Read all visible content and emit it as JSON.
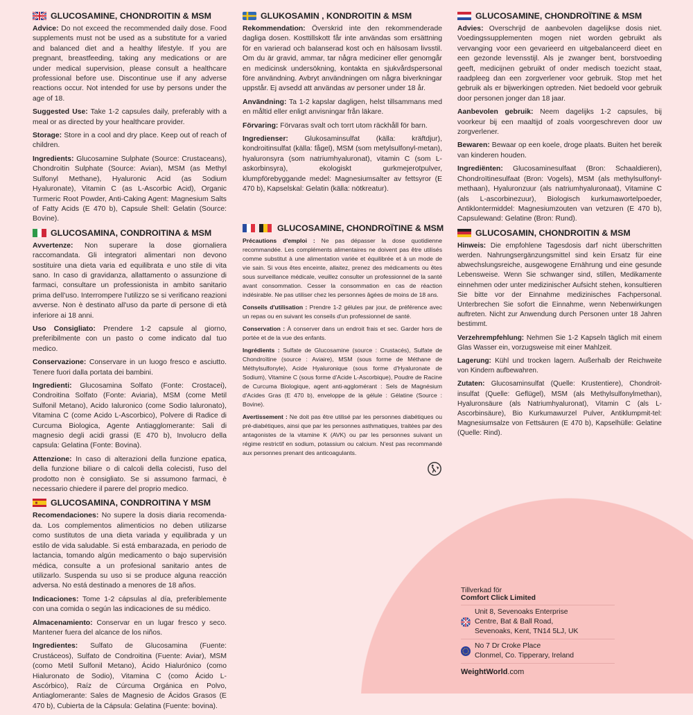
{
  "colors": {
    "background": "#fce6e6",
    "accent_circle": "#f9c3c1",
    "text": "#2a2a2a"
  },
  "sections": [
    {
      "id": "en",
      "flag": "uk-flag-icon",
      "title": "GLUCOSAMINE, CHONDROITIN & MSM",
      "paras": [
        {
          "label": "Advice:",
          "text": " Do not exceed the recommended daily dose. Food supplements must not be used as a substitute for a varied and balanced diet and a healthy lifestyle. If you are pregnant, breastfeeding, taking any medications or are under medical supervision, please consult a healthcare professional before use. Discontinue use if any adverse reactions occur. Not intended for use by persons under the age of 18."
        },
        {
          "label": "Suggested Use:",
          "text": " Take 1-2 capsules daily, preferably with a meal or as directed by your healthcare provider."
        },
        {
          "label": "Storage:",
          "text": " Store in a cool and dry place. Keep out of reach of children."
        },
        {
          "label": "Ingredients:",
          "text": " Glucosamine Sulphate (Source: Crustaceans), Chondroitin Sulphate (Source: Avian), MSM (as Methyl Sulfonyl Methane), Hyaluronic Acid (as Sodium Hyaluronate), Vitamin C (as L-Ascorbic Acid), Organic Turmeric Root Powder, Anti-Caking Agent: Magnesium Salts of Fatty Acids (E 470 b), Capsule Shell: Gelatin (Source: Bovine)."
        }
      ]
    },
    {
      "id": "sv",
      "flag": "sweden-flag-icon",
      "title": "GLUKOSAMIN , KONDROITIN & MSM",
      "paras": [
        {
          "label": "Rekommendation:",
          "text": " Överskrid inte den rekommenderade dagliga dosen. Kosttillskott får inte användas som ersättning för en varierad och balanserad kost och en hälsosam livsstil. Om du är gravid, ammar, tar några mediciner eller genomgår en medicinsk undersökning, kontakta en sjukvårdspersonal före användning. Avbryt användningen om några biverkningar uppstår. Ej avsedd att användas av personer under 18 år."
        },
        {
          "label": "Användning:",
          "text": " Ta 1-2 kapslar dagligen, helst tillsammans med en måltid eller enligt anvisningar från läkare."
        },
        {
          "label": "Förvaring:",
          "text": " Förvaras svalt och torrt utom räckhåll för barn."
        },
        {
          "label": "Ingredienser:",
          "text": " Glukosaminsulfat (källa: kräftdjur), kondroitinsulfat (källa: fågel), MSM (som metylsulfonyl-metan), hyaluronsyra (som natriumhyaluronat), vitamin C (som L-askorbinsyra), ekologiskt gurkmejerotpulver, klumpförebyggande medel: Magnesiumsalter av fettsyror (E 470 b), Kapselskal: Gelatin (källa: nötkreatur)."
        }
      ]
    },
    {
      "id": "nl",
      "flag": "netherlands-flag-icon",
      "title": "GLUCOSAMINE, CHONDROÏTINE & MSM",
      "paras": [
        {
          "label": "Advies:",
          "text": " Overschrijd de aanbevolen dagelijkse dosis niet. Voedingssupplementen mogen niet worden gebruikt als vervanging voor een gevarieerd en uitgebalanceerd dieet en een gezonde levensstijl. Als je zwanger bent, borstvoeding geeft, medicijnen gebruikt of onder medisch toezicht staat, raadpleeg dan een zorgverlener voor gebruik. Stop met het gebruik als er bijwerkingen optreden. Niet bedoeld voor gebruik door personen jonger dan 18 jaar."
        },
        {
          "label": "Aanbevolen gebruik:",
          "text": " Neem dagelijks 1-2 capsules, bij voorkeur bij een maaltijd of zoals voorgeschreven door uw zorgverlener."
        },
        {
          "label": "Bewaren:",
          "text": " Bewaar op een koele, droge plaats. Buiten het bereik van kinderen houden."
        },
        {
          "label": "Ingrediënten:",
          "text": " Glucosaminesulfaat (Bron: Schaaldieren), Chondroïtinesulfaat (Bron: Vogels), MSM (als methylsulfonyl-methaan), Hyaluronzuur (als natriumhyaluronaat), Vitamine C (als L-ascorbinezuur), Biologisch kurkumawortelpoeder, Antiklontermiddel: Magnesiumzouten van vetzuren (E 470 b), Capsulewand: Gelatine (Bron: Rund)."
        }
      ]
    },
    {
      "id": "it",
      "flag": "italy-flag-icon",
      "title": "GLUCOSAMINA, CONDROITINA & MSM",
      "paras": [
        {
          "label": "Avvertenze:",
          "text": " Non superare la dose giornaliera raccomandata. Gli integratori alimentari non devono sostituire una dieta varia ed equilibrata e uno stile di vita sano. In caso di gravidanza, allattamento o assunzione di farmaci, consultare un professionista in ambito sanitario prima dell'uso. Interrompere l'utilizzo se si verificano reazioni avverse. Non è destinato all'uso da parte di persone di età inferiore ai 18 anni."
        },
        {
          "label": "Uso Consigliato:",
          "text": " Prendere 1-2 capsule al giorno, preferibilmente con un pasto o come indicato dal tuo medico."
        },
        {
          "label": "Conservazione:",
          "text": " Conservare in un luogo fresco e asciutto. Tenere fuori dalla portata dei bambini."
        },
        {
          "label": "Ingredienti:",
          "text": " Glucosamina Solfato (Fonte: Crostacei), Condroitina Solfato (Fonte: Aviaria), MSM (come Metil Sulfonil Metano), Acido Ialuronico (come Sodio Ialuronato), Vitamina C (come Acido L-Ascorbico), Polvere di Radice di Curcuma Biologica, Agente Antiagglomerante: Sali di magnesio degli acidi grassi (E 470 b), Involucro della capsula: Gelatina (Fonte: Bovina)."
        },
        {
          "label": "Attenzione:",
          "text": " In caso di alterazioni della funzione epatica, della funzione biliare o di calcoli della colecisti, l'uso del prodotto non è consigliato. Se si assumono farmaci, è necessario chiedere il parere del proprio medico."
        }
      ]
    },
    {
      "id": "fr",
      "flag": "france-belgium-flag-icon",
      "title": "GLUCOSAMINE, CHONDROÏTINE & MSM",
      "paras": [
        {
          "label": "Précautions d'emploi :",
          "text": "  Ne pas dépasser la dose quotidienne recommandée. Les compléments alimentaires ne doivent pas être utilisés comme substitut à une alimentation variée et équilibrée et à un mode de vie sain. Si vous êtes enceinte, allaitez, prenez des médicaments ou êtes sous surveillance médicale, veuillez consulter un professionnel de la santé avant consommation. Cesser la consommation en cas de réaction indésirable. Ne pas utiliser chez les personnes âgées de moins de 18 ans."
        },
        {
          "label": "Conseils d'utilisation :",
          "text": " Prendre 1-2 gélules par jour, de préférence avec un repas ou en suivant les conseils d'un professionnel de santé."
        },
        {
          "label": "Conservation :",
          "text": " À conserver dans un endroit frais et sec. Garder hors de portée et de la vue des enfants."
        },
        {
          "label": "Ingrédients :",
          "text": " Sulfate de Glucosamine (source : Crustacés), Sulfate de Chondroïtine (source : Aviaire), MSM (sous forme de Méthane de Méthylsulfonyle), Acide Hyaluronique (sous forme d'Hyaluronate de Sodium), Vitamine C (sous forme d'Acide L-Ascorbique), Poudre de Racine de Curcuma Biologique, agent anti-agglomérant : Sels de Magnésium d'Acides Gras (E 470 b), enveloppe de la gélule : Gélatine (Source : Bovine)."
        },
        {
          "label": "Avertissement :",
          "text": " Ne doit pas être utilisé par les personnes diabétiques ou pré-diabétiques, ainsi que par les personnes asthmatiques, traitées par des antagonistes de la vitamine K (AVK) ou par les personnes suivant un régime restrictif en sodium, potassium ou calcium. N'est pas recommandé aux personnes prenant des anticoagulants."
        }
      ]
    },
    {
      "id": "de",
      "flag": "germany-flag-icon",
      "title": "GLUCOSAMIN, CHONDROITIN & MSM",
      "paras": [
        {
          "label": "Hinweis:",
          "text": " Die empfohlene Tagesdosis darf nicht überschritten werden. Nahrungsergänzungsmittel sind kein Ersatz für eine abwechslungsreiche, ausgewogene Ernährung und eine gesunde Lebensweise. Wenn Sie schwanger sind, stillen, Medikamente einnehmen oder unter medizinischer Aufsicht stehen, konsultieren Sie bitte vor der Einnahme medizinisches Fachpersonal. Unterbrechen Sie sofort die Einnahme, wenn Nebenwirkungen auftreten. Nicht zur Anwendung durch Personen unter 18 Jahren bestimmt."
        },
        {
          "label": "Verzehrempfehlung:",
          "text": " Nehmen Sie 1-2 Kapseln täglich mit einem Glas Wasser ein, vorzugsweise mit einer Mahlzeit."
        },
        {
          "label": "Lagerung:",
          "text": " Kühl und trocken lagern. Außerhalb der Reichweite von Kindern aufbewahren."
        },
        {
          "label": "Zutaten:",
          "text": " Glucosaminsulfat (Quelle: Krustentiere), Chondroit-insulfat (Quelle: Geflügel), MSM (als Methylsulfonylmethan), Hyaluronsäure (als Natriumhyaluronat), Vitamin C (als L-Ascorbinsäure), Bio Kurkumawurzel Pulver, Antiklumpmit-tel: Magnesiumsalze von Fettsäuren (E 470 b), Kapselhülle: Gelatine (Quelle: Rind)."
        }
      ]
    },
    {
      "id": "es",
      "flag": "spain-flag-icon",
      "title": "GLUCOSAMINA, CONDROITINA Y MSM",
      "paras": [
        {
          "label": "Recomendaciones:",
          "text": " No supere la dosis diaria recomenda-da. Los complementos alimenticios no deben utilizarse como sustitutos de una dieta variada y equilibrada y un estilo de vida saludable. Si está embarazada, en periodo de lactancia, tomando algún medicamento o bajo supervisión médica, consulte a un profesional sanitario antes de utilizarlo. Suspenda su uso si se produce alguna reacción adversa. No está destinado a menores de 18 años."
        },
        {
          "label": "Indicaciones:",
          "text": " Tome 1-2 cápsulas al día, preferiblemente con una comida o según las indicaciones de su médico."
        },
        {
          "label": "Almacenamiento:",
          "text": " Conservar en un lugar fresco y seco. Mantener fuera del alcance de los niños."
        },
        {
          "label": "Ingredientes:",
          "text": " Sulfato de Glucosamina (Fuente: Crustáceos), Sulfato de Condroitina (Fuente: Aviar), MSM (como Metil Sulfonil Metano), Ácido Hialurónico (como Hialuronato de Sodio), Vitamina C (como Ácido L-Ascórbico), Raíz de Cúrcuma Orgánica en Polvo, Antiaglomerante: Sales de Magnesio de Ácidos Grasos (E 470 b), Cubierta de la Cápsula: Gelatina (Fuente: bovina)."
        }
      ]
    }
  ],
  "recycle_icon": "triman-recycling-icon",
  "footer": {
    "made_for": "Tillverkad för",
    "company": "Comfort Click Limited",
    "uk_address": [
      "Unit 8, Sevenoaks Enterprise",
      "Centre, Bat & Ball Road,",
      "Sevenoaks, Kent, TN14 5LJ, UK"
    ],
    "eu_address": [
      "No 7 Dr Croke Place",
      "Clonmel, Co. Tipperary, Ireland"
    ],
    "website_bold": "WeightWorld",
    "website_rest": ".com"
  }
}
